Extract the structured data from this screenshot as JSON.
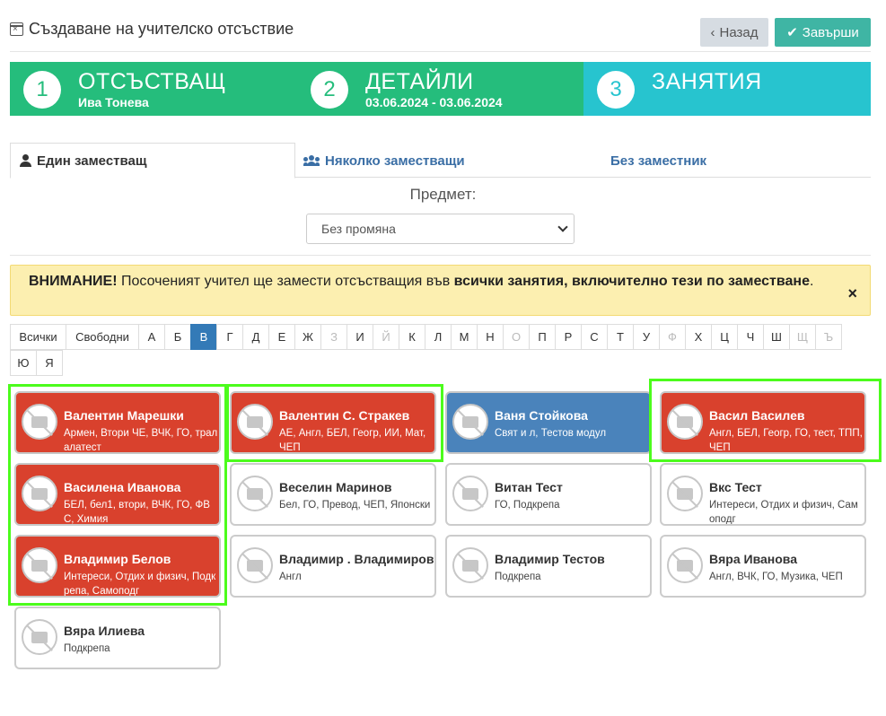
{
  "header": {
    "title": "Създаване на учителско отсъствие",
    "back_label": "Назад",
    "finish_label": "Завърши"
  },
  "steps": [
    {
      "num": "1",
      "title": "ОТСЪСТВАЩ",
      "subtitle": "Ива Тонева",
      "state": "done"
    },
    {
      "num": "2",
      "title": "ДЕТАЙЛИ",
      "subtitle": "03.06.2024 - 03.06.2024",
      "state": "done"
    },
    {
      "num": "3",
      "title": "ЗАНЯТИЯ",
      "subtitle": "",
      "state": "active"
    }
  ],
  "tabs": {
    "single": "Един заместващ",
    "multiple": "Няколко заместващи",
    "none": "Без заместник"
  },
  "subject": {
    "label": "Предмет:",
    "selected": "Без промяна"
  },
  "alert": {
    "strong1": "ВНИМАНИЕ!",
    "text1": " Посоченият учител ще замести отсъстващия във ",
    "strong2": "всички занятия, включително тези по заместване",
    "text2": ".",
    "close": "×"
  },
  "letter_filter": {
    "row1": [
      "Всички",
      "Свободни",
      "А",
      "Б",
      "В",
      "Г",
      "Д",
      "Е",
      "Ж",
      "З",
      "И",
      "Й",
      "К",
      "Л",
      "М",
      "Н",
      "О",
      "П",
      "Р",
      "С",
      "Т",
      "У",
      "Ф",
      "Х",
      "Ц",
      "Ч",
      "Ш",
      "Щ",
      "Ъ"
    ],
    "row2": [
      "Ю",
      "Я"
    ],
    "selected": "В",
    "dimmed": [
      "З",
      "Й",
      "О",
      "Ф",
      "Щ",
      "Ъ"
    ]
  },
  "teachers": [
    {
      "name": "Валентин Марешки",
      "subjects": "Армен, Втори ЧЕ, ВЧК, ГО, тралалатест",
      "status": "busy"
    },
    {
      "name": "Валентин С. Стракев",
      "subjects": "АЕ, Англ, БЕЛ, Геогр, ИИ, Мат, ЧЕП",
      "status": "busy"
    },
    {
      "name": "Ваня Стойкова",
      "subjects": "Свят и л, Тестов модул",
      "status": "selected"
    },
    {
      "name": "Васил Василев",
      "subjects": "Англ, БЕЛ, Геогр, ГО, тест, ТПП, ЧЕП",
      "status": "busy"
    },
    {
      "name": "Василена Иванова",
      "subjects": "БЕЛ, бел1, втори, ВЧК, ГО, ФВС, Химия",
      "status": "busy"
    },
    {
      "name": "Веселин Маринов",
      "subjects": "Бел, ГО, Превод, ЧЕП, Японски",
      "status": "free"
    },
    {
      "name": "Витан Тест",
      "subjects": "ГО, Подкрепа",
      "status": "free"
    },
    {
      "name": "Вкс Тест",
      "subjects": "Интереси, Отдих и физич, Самоподг",
      "status": "free"
    },
    {
      "name": "Владимир Белов",
      "subjects": "Интереси, Отдих и физич, Подкрепа, Самоподг",
      "status": "busy"
    },
    {
      "name": "Владимир . Владимиров",
      "subjects": "Англ",
      "status": "free"
    },
    {
      "name": "Владимир Тестов",
      "subjects": "Подкрепа",
      "status": "free"
    },
    {
      "name": "Вяра Иванова",
      "subjects": "Англ, ВЧК, ГО, Музика, ЧЕП",
      "status": "free"
    },
    {
      "name": "Вяра Илиева",
      "subjects": "Подкрепа",
      "status": "free"
    }
  ],
  "colors": {
    "step_done": "#25bd7c",
    "step_active": "#27c4cf",
    "busy_card": "#d9412d",
    "selected_card": "#4a83bb",
    "highlight": "#4cfc1c",
    "finish_button": "#3fb5a4"
  }
}
